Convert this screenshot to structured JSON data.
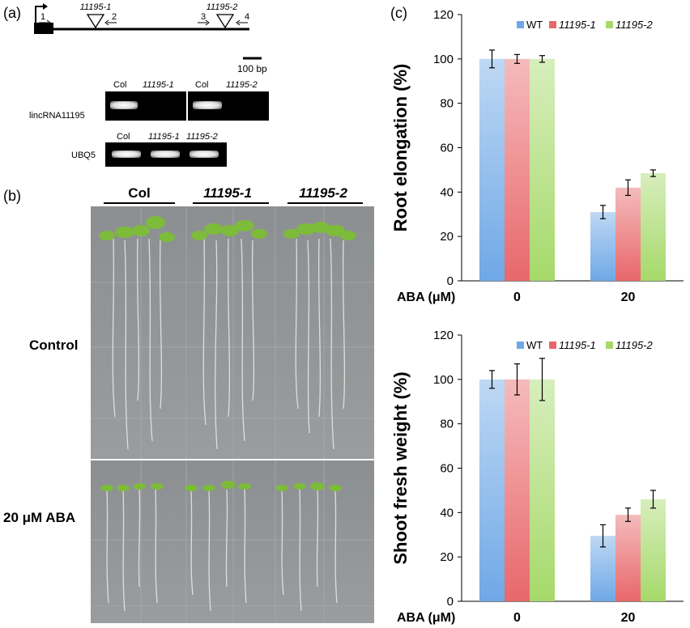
{
  "panels": {
    "a": "(a)",
    "b": "(b)",
    "c": "(c)"
  },
  "gene_diagram": {
    "insertion1": "11195-1",
    "insertion2": "11195-2",
    "primers": [
      "1",
      "2",
      "3",
      "4"
    ],
    "scale_bar": "100 bp"
  },
  "gel1": {
    "row_label": "lincRNA11195",
    "lanes": [
      "Col",
      "11195-1",
      "Col",
      "11195-2"
    ]
  },
  "gel2": {
    "row_label": "UBQ5",
    "lanes": [
      "Col",
      "11195-1",
      "11195-2"
    ]
  },
  "plates": {
    "columns": [
      "Col",
      "11195-1",
      "11195-2"
    ],
    "rows": [
      "Control",
      "20 μM ABA"
    ]
  },
  "chart_data": [
    {
      "type": "bar",
      "categories": [
        "0",
        "20"
      ],
      "xlabel": "ABA (μM)",
      "ylabel": "Root elongation (%)",
      "ylim": [
        0,
        120
      ],
      "yticks": [
        0,
        20,
        40,
        60,
        80,
        100,
        120
      ],
      "legend_position": "top-right",
      "grid": false,
      "series": [
        {
          "name": "WT",
          "color": "#6fa8e6",
          "values": [
            100,
            31
          ],
          "errors": [
            4,
            3
          ]
        },
        {
          "name": "11195-1",
          "color": "#e8676b",
          "values": [
            100,
            42
          ],
          "errors": [
            2,
            3.5
          ]
        },
        {
          "name": "11195-2",
          "color": "#a6d96a",
          "values": [
            100,
            48.5
          ],
          "errors": [
            1.5,
            1.5
          ]
        }
      ]
    },
    {
      "type": "bar",
      "categories": [
        "0",
        "20"
      ],
      "xlabel": "ABA (μM)",
      "ylabel": "Shoot fresh weight (%)",
      "ylim": [
        0,
        120
      ],
      "yticks": [
        0,
        20,
        40,
        60,
        80,
        100,
        120
      ],
      "legend_position": "top-right",
      "grid": false,
      "series": [
        {
          "name": "WT",
          "color": "#6fa8e6",
          "values": [
            100,
            29.5
          ],
          "errors": [
            4,
            5
          ]
        },
        {
          "name": "11195-1",
          "color": "#e8676b",
          "values": [
            100,
            39
          ],
          "errors": [
            7,
            3
          ]
        },
        {
          "name": "11195-2",
          "color": "#a6d96a",
          "values": [
            100,
            46
          ],
          "errors": [
            9.5,
            4
          ]
        }
      ]
    }
  ]
}
